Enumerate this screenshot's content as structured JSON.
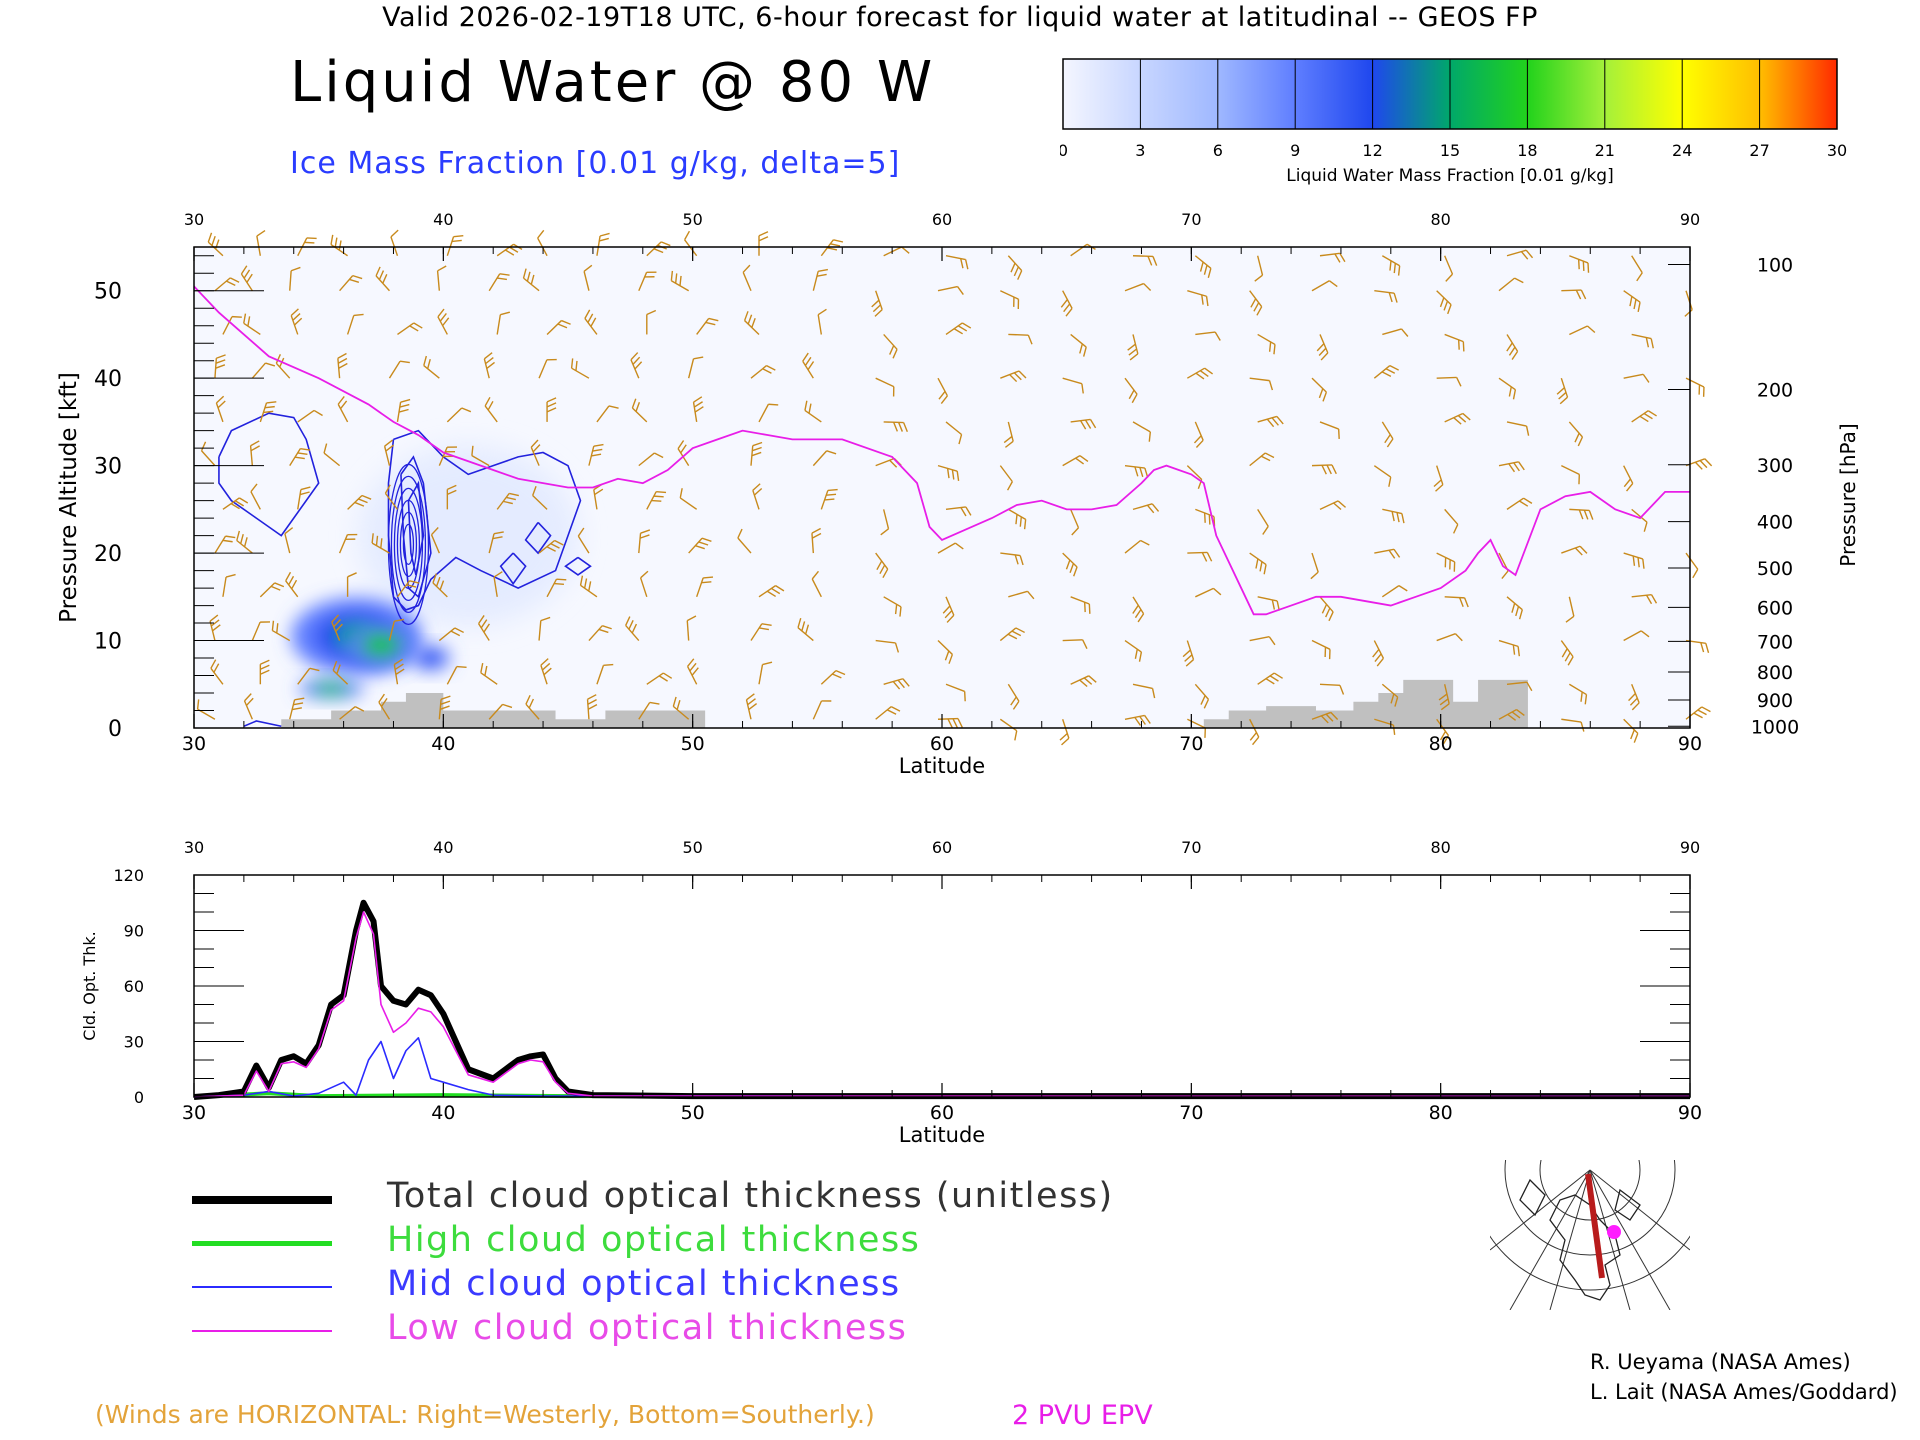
{
  "header": {
    "valid_line": "Valid 2026-02-19T18 UTC, 6-hour forecast for liquid water at latitudinal -- GEOS FP",
    "title": "Liquid Water @ 80 W",
    "subtitle": "Ice Mass Fraction [0.01 g/kg, delta=5]"
  },
  "colorbar": {
    "ticks": [
      "0",
      "3",
      "6",
      "9",
      "12",
      "15",
      "18",
      "21",
      "24",
      "27",
      "30"
    ],
    "label": "Liquid Water Mass Fraction [0.01 g/kg]",
    "colors": [
      "#f4f6ff",
      "#c8d6ff",
      "#9fb8ff",
      "#5f7eff",
      "#1f47ee",
      "#00a86a",
      "#22d21c",
      "#a4f03a",
      "#ffff00",
      "#ffbe00",
      "#ff2a00"
    ]
  },
  "chart_data": [
    {
      "type": "heatmap",
      "name": "cross-section",
      "xlabel": "Latitude",
      "ylabel": "Pressure Altitude [kft]",
      "y2label": "Pressure [hPa]",
      "xlim": [
        30,
        90
      ],
      "ylim": [
        0,
        55
      ],
      "x_ticks": [
        "30",
        "40",
        "50",
        "60",
        "70",
        "80",
        "90"
      ],
      "y_ticks": [
        "0",
        "10",
        "20",
        "30",
        "40",
        "50"
      ],
      "pressure_ticks": [
        {
          "label": "100",
          "kft": 53.0
        },
        {
          "label": "200",
          "kft": 38.7
        },
        {
          "label": "300",
          "kft": 30.1
        },
        {
          "label": "400",
          "kft": 23.6
        },
        {
          "label": "500",
          "kft": 18.3
        },
        {
          "label": "600",
          "kft": 13.8
        },
        {
          "label": "700",
          "kft": 9.9
        },
        {
          "label": "800",
          "kft": 6.4
        },
        {
          "label": "900",
          "kft": 3.2
        },
        {
          "label": "1000",
          "kft": 0.2
        }
      ],
      "epv_2pvu_line": [
        [
          30,
          50.5
        ],
        [
          31,
          47.5
        ],
        [
          32,
          45
        ],
        [
          33,
          42.5
        ],
        [
          35,
          40
        ],
        [
          37,
          37
        ],
        [
          38,
          35
        ],
        [
          39,
          33.5
        ],
        [
          40,
          31.5
        ],
        [
          41,
          30.5
        ],
        [
          42,
          29.5
        ],
        [
          43,
          28.5
        ],
        [
          44,
          28
        ],
        [
          45,
          27.5
        ],
        [
          46,
          27.5
        ],
        [
          47,
          28.5
        ],
        [
          48,
          28
        ],
        [
          49,
          29.5
        ],
        [
          50,
          32
        ],
        [
          51,
          33
        ],
        [
          52,
          34
        ],
        [
          53,
          33.5
        ],
        [
          54,
          33
        ],
        [
          56,
          33
        ],
        [
          58,
          31
        ],
        [
          59,
          28
        ],
        [
          59.5,
          23
        ],
        [
          60,
          21.5
        ],
        [
          62,
          24
        ],
        [
          63,
          25.5
        ],
        [
          64,
          26
        ],
        [
          65,
          25
        ],
        [
          66,
          25
        ],
        [
          67,
          25.5
        ],
        [
          68,
          28
        ],
        [
          68.5,
          29.5
        ],
        [
          69,
          30
        ],
        [
          70,
          29
        ],
        [
          70.5,
          28
        ],
        [
          71,
          22
        ],
        [
          72,
          16
        ],
        [
          72.5,
          13
        ],
        [
          73,
          13
        ],
        [
          74,
          14
        ],
        [
          75,
          15
        ],
        [
          76,
          15
        ],
        [
          77,
          14.5
        ],
        [
          78,
          14
        ],
        [
          79,
          15
        ],
        [
          80,
          16
        ],
        [
          81,
          18
        ],
        [
          81.5,
          20
        ],
        [
          82,
          21.5
        ],
        [
          82.5,
          18.5
        ],
        [
          83,
          17.5
        ],
        [
          84,
          25
        ],
        [
          85,
          26.5
        ],
        [
          86,
          27
        ],
        [
          87,
          25
        ],
        [
          88,
          24
        ],
        [
          89,
          27
        ],
        [
          90,
          27
        ]
      ],
      "terrain_kft": [
        [
          33,
          0
        ],
        [
          33.5,
          1
        ],
        [
          35,
          1
        ],
        [
          35.5,
          2
        ],
        [
          37,
          2
        ],
        [
          37.5,
          3
        ],
        [
          38,
          3
        ],
        [
          38.5,
          4
        ],
        [
          39.5,
          4
        ],
        [
          40,
          2
        ],
        [
          44,
          2
        ],
        [
          44.5,
          1
        ],
        [
          46,
          1
        ],
        [
          46.5,
          2
        ],
        [
          50,
          2
        ],
        [
          50.5,
          0
        ],
        [
          70,
          0
        ],
        [
          70.5,
          1
        ],
        [
          71,
          1
        ],
        [
          71.5,
          2
        ],
        [
          72.5,
          2
        ],
        [
          73,
          2.5
        ],
        [
          74.5,
          2.5
        ],
        [
          75,
          2
        ],
        [
          76,
          2
        ],
        [
          76.5,
          3
        ],
        [
          77,
          3
        ],
        [
          77.5,
          4
        ],
        [
          78,
          4
        ],
        [
          78.5,
          5.5
        ],
        [
          80,
          5.5
        ],
        [
          80.5,
          3
        ],
        [
          81,
          3
        ],
        [
          81.5,
          5.5
        ],
        [
          83,
          5.5
        ],
        [
          83.5,
          0
        ]
      ],
      "liquid_water_blobs": [
        {
          "lat": 36.5,
          "kft": 10.5,
          "rx": 2.0,
          "ry": 3.4,
          "value": 15
        },
        {
          "lat": 37.5,
          "kft": 9.5,
          "rx": 1.1,
          "ry": 2.0,
          "value": 19
        },
        {
          "lat": 39.5,
          "kft": 8.0,
          "rx": 0.6,
          "ry": 1.1,
          "value": 13
        },
        {
          "lat": 35.5,
          "kft": 4.5,
          "rx": 1.0,
          "ry": 0.9,
          "value": 17
        }
      ],
      "ice_contours": [
        [
          [
            31,
            31
          ],
          [
            31.5,
            34
          ],
          [
            33,
            36
          ],
          [
            34,
            35.5
          ],
          [
            34.5,
            33
          ],
          [
            35,
            28
          ],
          [
            34.5,
            26
          ],
          [
            34,
            24
          ],
          [
            33.5,
            22
          ],
          [
            33,
            23
          ],
          [
            32.5,
            24
          ],
          [
            31.5,
            26
          ],
          [
            31,
            28
          ],
          [
            31,
            31
          ]
        ],
        [
          [
            38,
            33
          ],
          [
            39,
            34
          ],
          [
            40,
            31
          ],
          [
            41,
            29
          ],
          [
            42,
            30
          ],
          [
            43,
            31
          ],
          [
            44,
            31.5
          ],
          [
            45,
            30
          ],
          [
            45.5,
            26
          ],
          [
            45,
            22
          ],
          [
            44.5,
            18
          ],
          [
            43,
            16
          ],
          [
            41.5,
            18
          ],
          [
            40.5,
            19.5
          ],
          [
            39.5,
            17
          ],
          [
            39,
            14
          ],
          [
            38.5,
            13.5
          ],
          [
            38,
            15
          ],
          [
            37.8,
            22
          ],
          [
            37.8,
            28
          ],
          [
            38,
            33
          ]
        ],
        [
          [
            38.3,
            29
          ],
          [
            38.8,
            31
          ],
          [
            39.2,
            28
          ],
          [
            39.5,
            20
          ],
          [
            39,
            15
          ],
          [
            38.6,
            16
          ],
          [
            38.4,
            22
          ],
          [
            38.3,
            29
          ]
        ],
        [
          [
            38.6,
            26
          ],
          [
            39,
            28
          ],
          [
            39.2,
            22
          ],
          [
            38.9,
            17.5
          ],
          [
            38.7,
            20
          ],
          [
            38.6,
            26
          ]
        ],
        [
          [
            42.8,
            20
          ],
          [
            43.3,
            18.5
          ],
          [
            42.8,
            16.5
          ],
          [
            42.3,
            18.5
          ],
          [
            42.8,
            20
          ]
        ],
        [
          [
            43.8,
            23.5
          ],
          [
            44.3,
            22
          ],
          [
            43.8,
            20
          ],
          [
            43.3,
            21.5
          ],
          [
            43.8,
            23.5
          ]
        ],
        [
          [
            45.4,
            19.5
          ],
          [
            45.9,
            18.5
          ],
          [
            45.4,
            17.5
          ],
          [
            44.9,
            18.5
          ],
          [
            45.4,
            19.5
          ]
        ],
        [
          [
            32,
            0.2
          ],
          [
            32.5,
            0.8
          ],
          [
            33.5,
            0.2
          ]
        ]
      ],
      "wind_barbs": {
        "columns": [
          31,
          32.5,
          34,
          36,
          38,
          40,
          42,
          44,
          46,
          48,
          50,
          52.5,
          55,
          57.5,
          60,
          62.5,
          65,
          67.5,
          70,
          72.5,
          75,
          77.5,
          80,
          82.5,
          85,
          87.5,
          90
        ],
        "levels_kft": [
          1,
          5,
          10,
          15,
          20,
          25,
          30,
          35,
          40,
          45,
          50,
          54
        ]
      }
    },
    {
      "type": "line",
      "name": "cloud-optical-thickness",
      "xlabel": "Latitude",
      "ylabel": "Cld. Opt. Thk.",
      "xlim": [
        30,
        90
      ],
      "ylim": [
        0,
        120
      ],
      "x_ticks": [
        "30",
        "40",
        "50",
        "60",
        "70",
        "80",
        "90"
      ],
      "y_ticks": [
        "0",
        "30",
        "60",
        "90",
        "120"
      ],
      "series": [
        {
          "name": "Total cloud optical thickness (unitless)",
          "color": "#000000",
          "points": [
            [
              30,
              0
            ],
            [
              31,
              1
            ],
            [
              32,
              3
            ],
            [
              32.5,
              17
            ],
            [
              33,
              5
            ],
            [
              33.5,
              20
            ],
            [
              34,
              22
            ],
            [
              34.5,
              18
            ],
            [
              35,
              28
            ],
            [
              35.5,
              50
            ],
            [
              36,
              55
            ],
            [
              36.5,
              90
            ],
            [
              36.8,
              105
            ],
            [
              37.2,
              95
            ],
            [
              37.5,
              60
            ],
            [
              38,
              52
            ],
            [
              38.5,
              50
            ],
            [
              39,
              58
            ],
            [
              39.5,
              55
            ],
            [
              40,
              45
            ],
            [
              40.5,
              30
            ],
            [
              41,
              15
            ],
            [
              42,
              10
            ],
            [
              42.5,
              15
            ],
            [
              43,
              20
            ],
            [
              43.5,
              22
            ],
            [
              44,
              23
            ],
            [
              44.5,
              10
            ],
            [
              45,
              3
            ],
            [
              46,
              1
            ],
            [
              50,
              0.5
            ],
            [
              90,
              0.5
            ]
          ]
        },
        {
          "name": "High cloud optical thickness",
          "color": "#22dd22",
          "points": [
            [
              30,
              0
            ],
            [
              33,
              2
            ],
            [
              35,
              0.5
            ],
            [
              40,
              1
            ],
            [
              45,
              0.5
            ],
            [
              90,
              0.3
            ]
          ]
        },
        {
          "name": "Mid cloud optical thickness",
          "color": "#2b2bff",
          "points": [
            [
              30,
              0
            ],
            [
              32,
              1
            ],
            [
              33,
              3
            ],
            [
              34,
              0.5
            ],
            [
              35,
              2
            ],
            [
              36,
              8
            ],
            [
              36.5,
              1
            ],
            [
              37,
              20
            ],
            [
              37.5,
              30
            ],
            [
              38,
              10
            ],
            [
              38.5,
              25
            ],
            [
              39,
              32
            ],
            [
              39.5,
              10
            ],
            [
              40,
              8
            ],
            [
              41,
              4
            ],
            [
              42,
              1
            ],
            [
              44,
              0.5
            ],
            [
              90,
              0.2
            ]
          ]
        },
        {
          "name": "Low cloud optical thickness",
          "color": "#e81ee8",
          "points": [
            [
              30,
              0
            ],
            [
              32,
              1
            ],
            [
              32.5,
              14
            ],
            [
              33,
              3
            ],
            [
              33.5,
              18
            ],
            [
              34,
              19
            ],
            [
              34.5,
              16
            ],
            [
              35,
              26
            ],
            [
              35.5,
              47
            ],
            [
              36,
              52
            ],
            [
              36.5,
              86
            ],
            [
              36.8,
              100
            ],
            [
              37.2,
              88
            ],
            [
              37.5,
              50
            ],
            [
              38,
              35
            ],
            [
              38.5,
              40
            ],
            [
              39,
              48
            ],
            [
              39.5,
              46
            ],
            [
              40,
              38
            ],
            [
              40.5,
              25
            ],
            [
              41,
              12
            ],
            [
              42,
              8
            ],
            [
              42.5,
              13
            ],
            [
              43,
              18
            ],
            [
              43.5,
              20
            ],
            [
              44,
              19
            ],
            [
              44.5,
              8
            ],
            [
              45,
              2
            ],
            [
              46,
              0.5
            ],
            [
              90,
              0.3
            ]
          ]
        }
      ]
    }
  ],
  "legend": {
    "total": "Total cloud optical thickness (unitless)",
    "high": "High cloud optical thickness",
    "mid": "Mid cloud optical thickness",
    "low": "Low cloud optical thickness"
  },
  "credits": {
    "line1": "R. Ueyama (NASA Ames)",
    "line2": "L. Lait (NASA Ames/Goddard)"
  },
  "notes": {
    "winds": "(Winds are HORIZONTAL: Right=Westerly, Bottom=Southerly.)",
    "epv": "2 PVU EPV"
  },
  "colors": {
    "ice_contour": "#2222dd",
    "epv_line": "#e81ee8",
    "wind_barb": "#c88a1c",
    "terrain": "#c0c0c0"
  }
}
